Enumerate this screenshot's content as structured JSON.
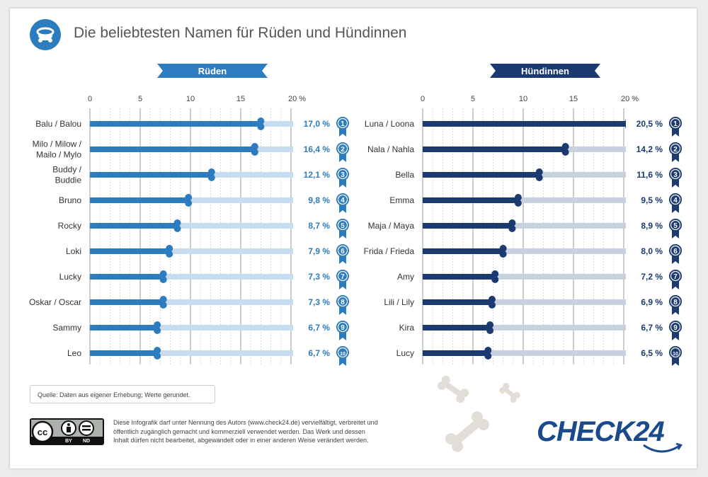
{
  "header": {
    "title": "Die beliebtesten Namen für Rüden und Hündinnen",
    "icon": "dog-collar-icon"
  },
  "colors": {
    "male": "#2e7cc0",
    "female": "#1a3a70",
    "male_track": "#c7dcef",
    "female_track": "#c8d1e0"
  },
  "chart_data": [
    {
      "type": "bar",
      "title": "Rüden",
      "ticks": [
        "0",
        "5",
        "10",
        "15",
        "20 %"
      ],
      "xlim": [
        0,
        20
      ],
      "grid": true,
      "categories": [
        "Balu / Balou",
        "Milo / Milow / Mailo / Mylo",
        "Buddy / Buddie",
        "Bruno",
        "Rocky",
        "Loki",
        "Lucky",
        "Oskar / Oscar",
        "Sammy",
        "Leo"
      ],
      "category_lines": [
        [
          "Balu / Balou"
        ],
        [
          "Milo / Milow /",
          "Mailo / Mylo"
        ],
        [
          "Buddy /",
          "Buddie"
        ],
        [
          "Bruno"
        ],
        [
          "Rocky"
        ],
        [
          "Loki"
        ],
        [
          "Lucky"
        ],
        [
          "Oskar / Oscar"
        ],
        [
          "Sammy"
        ],
        [
          "Leo"
        ]
      ],
      "values": [
        17.0,
        16.4,
        12.1,
        9.8,
        8.7,
        7.9,
        7.3,
        7.3,
        6.7,
        6.7
      ],
      "value_labels": [
        "17,0 %",
        "16,4 %",
        "12,1 %",
        "9,8 %",
        "8,7 %",
        "7,9 %",
        "7,3 %",
        "7,3 %",
        "6,7 %",
        "6,7 %"
      ],
      "ranks": [
        "1",
        "2",
        "3",
        "4",
        "5",
        "6",
        "7",
        "8",
        "9",
        "10"
      ]
    },
    {
      "type": "bar",
      "title": "Hündinnen",
      "ticks": [
        "0",
        "5",
        "10",
        "15",
        "20 %"
      ],
      "xlim": [
        0,
        20
      ],
      "grid": true,
      "categories": [
        "Luna / Loona",
        "Nala / Nahla",
        "Bella",
        "Emma",
        "Maja / Maya",
        "Frida / Frieda",
        "Amy",
        "Lili / Lily",
        "Kira",
        "Lucy"
      ],
      "category_lines": [
        [
          "Luna / Loona"
        ],
        [
          "Nala / Nahla"
        ],
        [
          "Bella"
        ],
        [
          "Emma"
        ],
        [
          "Maja / Maya"
        ],
        [
          "Frida / Frieda"
        ],
        [
          "Amy"
        ],
        [
          "Lili / Lily"
        ],
        [
          "Kira"
        ],
        [
          "Lucy"
        ]
      ],
      "values": [
        20.5,
        14.2,
        11.6,
        9.5,
        8.9,
        8.0,
        7.2,
        6.9,
        6.7,
        6.5
      ],
      "value_labels": [
        "20,5 %",
        "14,2 %",
        "11,6 %",
        "9,5 %",
        "8,9 %",
        "8,0 %",
        "7,2 %",
        "6,9 %",
        "6,7 %",
        "6,5 %"
      ],
      "ranks": [
        "1",
        "2",
        "3",
        "4",
        "5",
        "6",
        "7",
        "8",
        "9",
        "10"
      ]
    }
  ],
  "footer": {
    "source": "Quelle: Daten aus eigener Erhebung; Werte gerundet.",
    "license_lines": [
      "Diese Infografik darf unter Nennung des Autors (www.check24.de) vervielfältigt, verbreitet und",
      "öffentlich zugänglich gemacht und kommerziell verwendet werden. Das Werk und dessen",
      "Inhalt dürfen nicht bearbeitet, abgewandelt oder in einer anderen Weise verändert werden."
    ],
    "cc_badge": {
      "by": "BY",
      "nd": "ND",
      "cc": "cc"
    },
    "brand": "CHECK24"
  }
}
